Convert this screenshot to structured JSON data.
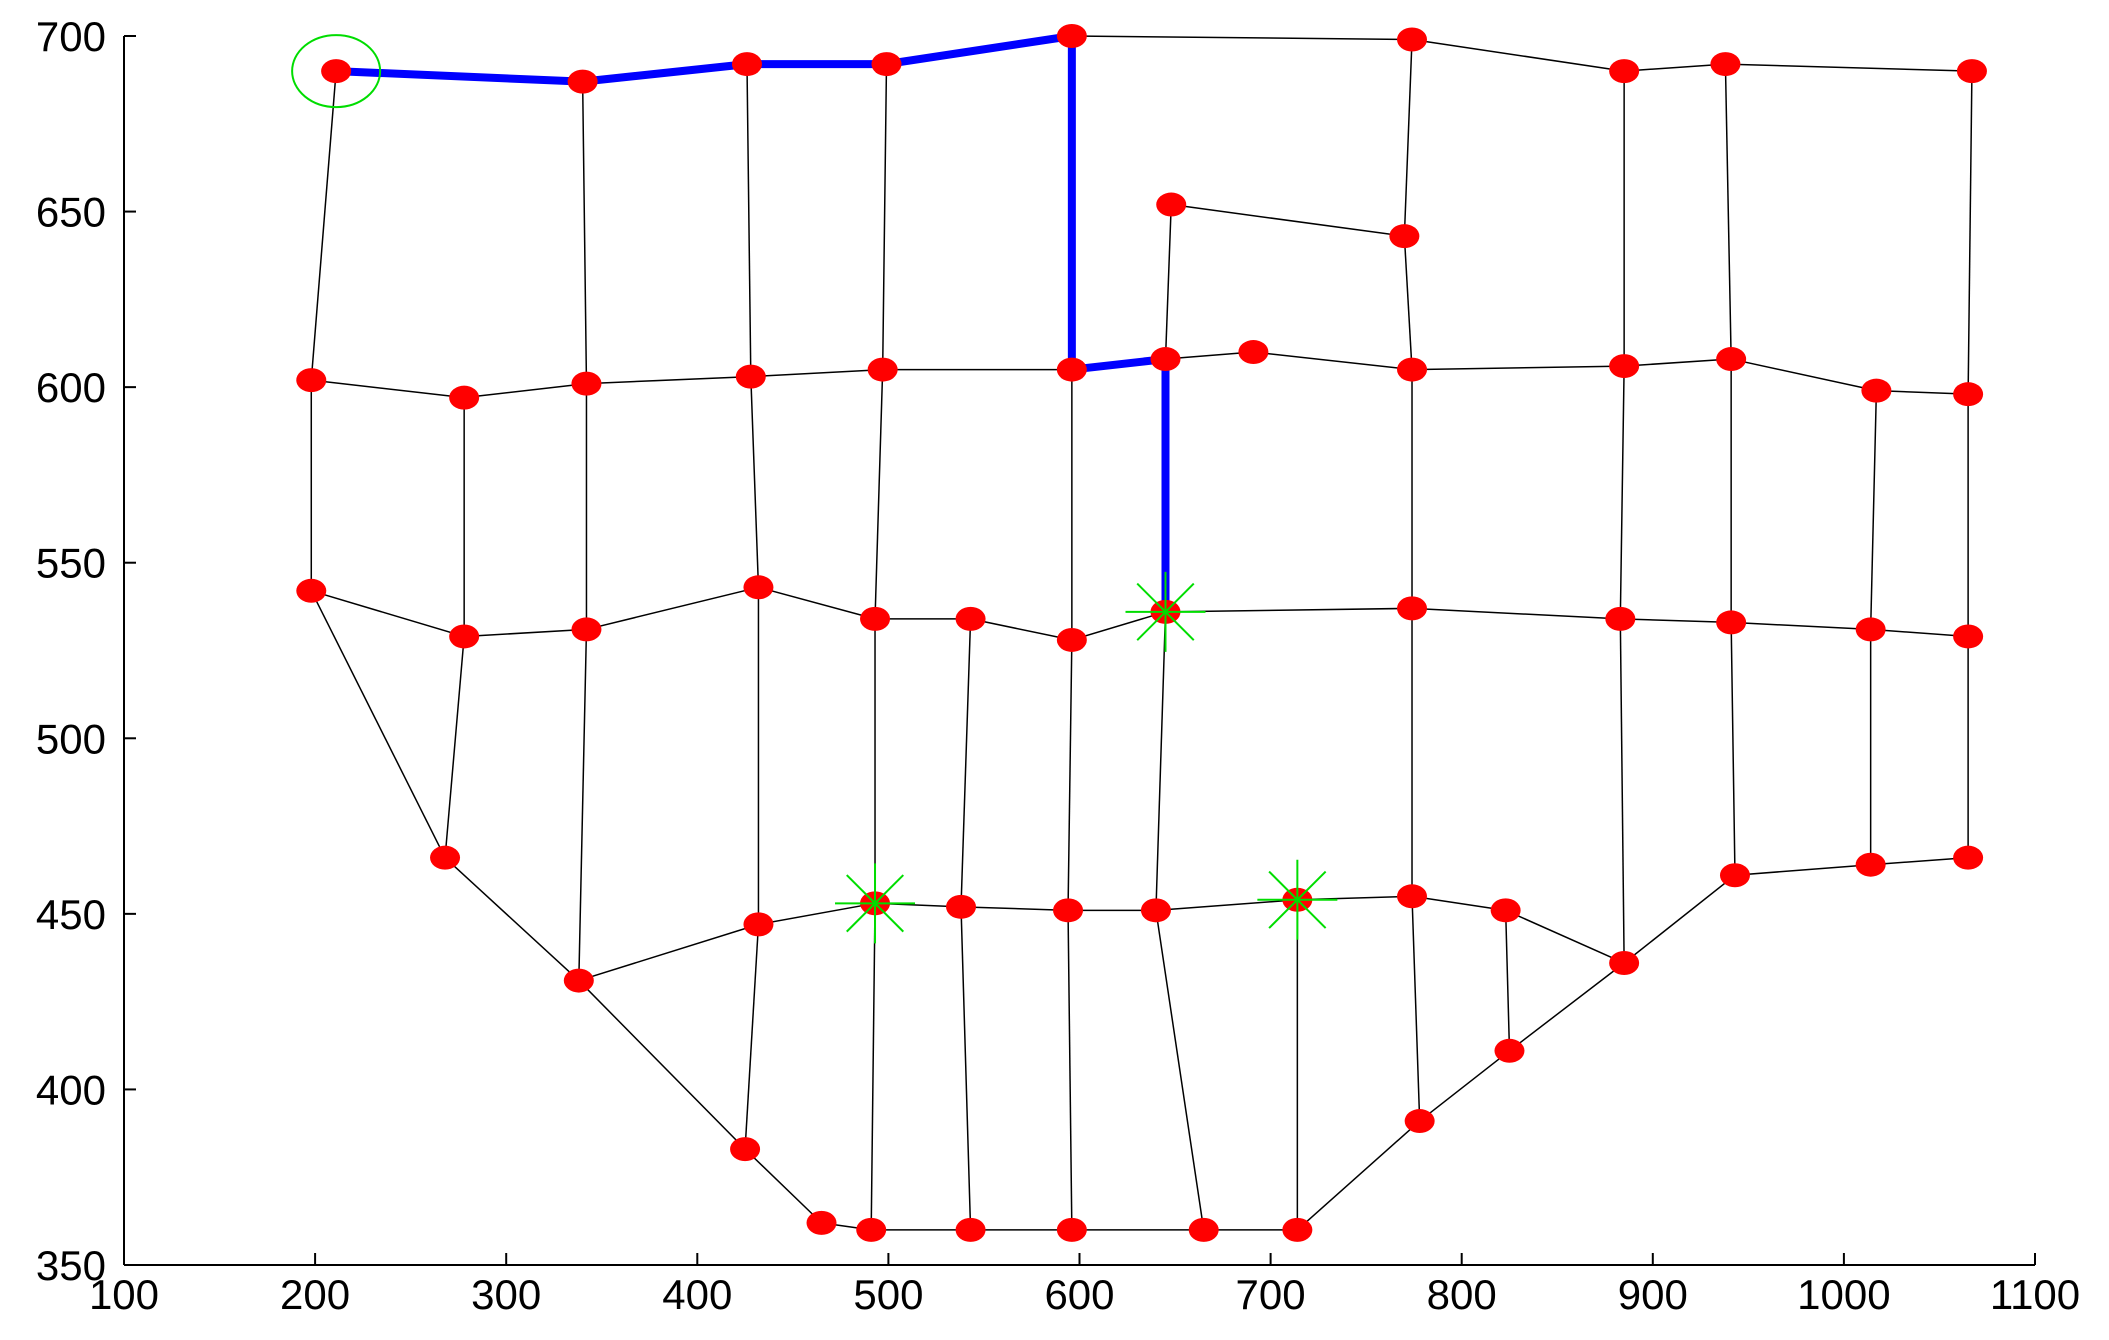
{
  "chart_data": {
    "type": "network",
    "xlim": [
      100,
      1100
    ],
    "ylim": [
      350,
      700
    ],
    "xticks": [
      100,
      200,
      300,
      400,
      500,
      600,
      700,
      800,
      900,
      1000,
      1100
    ],
    "yticks": [
      350,
      400,
      450,
      500,
      550,
      600,
      650,
      700
    ],
    "nodes": {
      "x": [
        211,
        340,
        426,
        499,
        596,
        774,
        885,
        938,
        1067,
        648,
        770,
        198,
        278,
        342,
        428,
        497,
        596,
        645,
        691,
        774,
        885,
        941,
        1017,
        1065,
        198,
        278,
        342,
        432,
        493,
        543,
        596,
        645,
        774,
        883,
        941,
        1014,
        1065,
        268,
        338,
        432,
        493,
        538,
        594,
        640,
        714,
        774,
        823,
        885,
        943,
        1014,
        1065,
        425,
        465,
        491,
        543,
        596,
        665,
        714,
        778,
        825
      ],
      "y": [
        690,
        687,
        692,
        692,
        700,
        699,
        690,
        692,
        690,
        652,
        643,
        602,
        597,
        601,
        603,
        605,
        605,
        608,
        610,
        605,
        606,
        608,
        599,
        598,
        542,
        529,
        531,
        543,
        534,
        534,
        528,
        536,
        537,
        534,
        533,
        531,
        529,
        466,
        431,
        447,
        453,
        452,
        451,
        451,
        454,
        455,
        451,
        436,
        461,
        464,
        466,
        383,
        362,
        360,
        360,
        360,
        360,
        360,
        391,
        411
      ]
    },
    "edges": [
      [
        0,
        1
      ],
      [
        1,
        2
      ],
      [
        2,
        3
      ],
      [
        3,
        4
      ],
      [
        4,
        5
      ],
      [
        5,
        6
      ],
      [
        6,
        7
      ],
      [
        7,
        8
      ],
      [
        9,
        10
      ],
      [
        0,
        11
      ],
      [
        1,
        13
      ],
      [
        2,
        14
      ],
      [
        3,
        15
      ],
      [
        4,
        16
      ],
      [
        5,
        10
      ],
      [
        10,
        19
      ],
      [
        6,
        20
      ],
      [
        7,
        21
      ],
      [
        8,
        23
      ],
      [
        9,
        17
      ],
      [
        11,
        12
      ],
      [
        12,
        13
      ],
      [
        13,
        14
      ],
      [
        14,
        15
      ],
      [
        15,
        16
      ],
      [
        16,
        17
      ],
      [
        17,
        18
      ],
      [
        18,
        19
      ],
      [
        19,
        20
      ],
      [
        20,
        21
      ],
      [
        21,
        22
      ],
      [
        22,
        23
      ],
      [
        11,
        24
      ],
      [
        12,
        25
      ],
      [
        13,
        26
      ],
      [
        14,
        27
      ],
      [
        15,
        28
      ],
      [
        16,
        30
      ],
      [
        17,
        31
      ],
      [
        19,
        32
      ],
      [
        20,
        33
      ],
      [
        21,
        34
      ],
      [
        22,
        35
      ],
      [
        23,
        36
      ],
      [
        24,
        25
      ],
      [
        25,
        26
      ],
      [
        26,
        27
      ],
      [
        27,
        28
      ],
      [
        28,
        29
      ],
      [
        29,
        30
      ],
      [
        30,
        31
      ],
      [
        31,
        32
      ],
      [
        32,
        33
      ],
      [
        33,
        34
      ],
      [
        34,
        35
      ],
      [
        35,
        36
      ],
      [
        24,
        37
      ],
      [
        25,
        37
      ],
      [
        26,
        38
      ],
      [
        27,
        39
      ],
      [
        28,
        40
      ],
      [
        29,
        41
      ],
      [
        30,
        42
      ],
      [
        31,
        43
      ],
      [
        32,
        45
      ],
      [
        33,
        47
      ],
      [
        34,
        48
      ],
      [
        35,
        49
      ],
      [
        36,
        50
      ],
      [
        37,
        38
      ],
      [
        38,
        39
      ],
      [
        39,
        40
      ],
      [
        40,
        41
      ],
      [
        41,
        42
      ],
      [
        42,
        43
      ],
      [
        43,
        44
      ],
      [
        44,
        45
      ],
      [
        45,
        46
      ],
      [
        46,
        47
      ],
      [
        47,
        48
      ],
      [
        48,
        49
      ],
      [
        49,
        50
      ],
      [
        46,
        59
      ],
      [
        38,
        51
      ],
      [
        51,
        52
      ],
      [
        52,
        53
      ],
      [
        53,
        54
      ],
      [
        54,
        55
      ],
      [
        55,
        56
      ],
      [
        56,
        57
      ],
      [
        57,
        58
      ],
      [
        58,
        59
      ],
      [
        59,
        47
      ],
      [
        39,
        51
      ],
      [
        40,
        53
      ],
      [
        41,
        54
      ],
      [
        42,
        55
      ],
      [
        43,
        56
      ],
      [
        44,
        57
      ],
      [
        45,
        58
      ]
    ],
    "path": [
      0,
      1,
      2,
      3,
      4,
      16,
      17,
      31
    ],
    "marked": [
      31,
      40,
      44
    ],
    "start": 0,
    "node_color": "#ff0000",
    "edge_color": "#000000",
    "path_color": "#0000ff",
    "marker_color": "#00dd00"
  }
}
